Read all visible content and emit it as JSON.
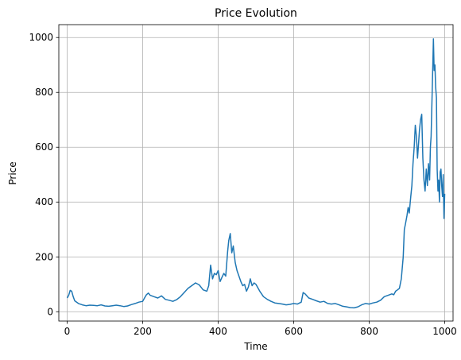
{
  "chart_data": {
    "type": "line",
    "title": "Price Evolution",
    "xlabel": "Time",
    "ylabel": "Price",
    "xlim": [
      -22,
      1022
    ],
    "ylim": [
      -34,
      1047
    ],
    "grid": true,
    "line_color": "#1f77b4",
    "grid_color": "#b0b0b0",
    "xticks": [
      0,
      200,
      400,
      600,
      800,
      1000
    ],
    "yticks": [
      0,
      200,
      400,
      600,
      800,
      1000
    ],
    "series": [
      {
        "name": "Price",
        "x": [
          0,
          4,
          8,
          12,
          16,
          20,
          30,
          40,
          50,
          60,
          70,
          80,
          90,
          100,
          110,
          120,
          130,
          140,
          150,
          160,
          170,
          180,
          190,
          200,
          205,
          210,
          215,
          220,
          230,
          240,
          250,
          260,
          270,
          280,
          290,
          300,
          310,
          320,
          330,
          340,
          350,
          360,
          370,
          375,
          380,
          385,
          390,
          395,
          400,
          405,
          410,
          415,
          420,
          425,
          428,
          432,
          436,
          440,
          445,
          450,
          455,
          460,
          465,
          470,
          475,
          480,
          485,
          490,
          495,
          500,
          510,
          520,
          530,
          540,
          550,
          560,
          570,
          580,
          590,
          600,
          610,
          620,
          625,
          630,
          640,
          650,
          660,
          670,
          680,
          690,
          700,
          710,
          720,
          730,
          740,
          750,
          760,
          770,
          780,
          790,
          800,
          810,
          820,
          830,
          840,
          850,
          860,
          865,
          870,
          875,
          880,
          885,
          890,
          893,
          896,
          900,
          903,
          906,
          910,
          913,
          916,
          919,
          922,
          925,
          928,
          930,
          933,
          936,
          939,
          942,
          945,
          948,
          951,
          954,
          957,
          960,
          962,
          964,
          966,
          968,
          970,
          972,
          974,
          976,
          978,
          980,
          982,
          984,
          986,
          988,
          990,
          992,
          994,
          996,
          998,
          1000
        ],
        "values": [
          50,
          60,
          78,
          75,
          55,
          40,
          30,
          25,
          22,
          24,
          23,
          22,
          25,
          21,
          20,
          22,
          24,
          22,
          19,
          21,
          26,
          30,
          35,
          38,
          50,
          62,
          68,
          60,
          55,
          50,
          58,
          45,
          42,
          38,
          44,
          55,
          70,
          85,
          95,
          105,
          98,
          80,
          75,
          95,
          170,
          120,
          140,
          135,
          150,
          110,
          125,
          140,
          130,
          220,
          260,
          285,
          215,
          240,
          180,
          150,
          130,
          110,
          95,
          100,
          75,
          90,
          120,
          95,
          105,
          100,
          75,
          55,
          45,
          38,
          32,
          30,
          28,
          25,
          27,
          30,
          28,
          35,
          70,
          65,
          50,
          45,
          40,
          35,
          38,
          30,
          28,
          30,
          25,
          20,
          18,
          15,
          14,
          18,
          25,
          30,
          28,
          32,
          35,
          42,
          55,
          60,
          65,
          62,
          75,
          80,
          85,
          120,
          200,
          300,
          320,
          350,
          380,
          360,
          420,
          460,
          540,
          600,
          680,
          640,
          560,
          600,
          660,
          700,
          720,
          560,
          480,
          440,
          520,
          460,
          540,
          480,
          600,
          640,
          760,
          870,
          995,
          880,
          900,
          820,
          780,
          520,
          440,
          480,
          400,
          510,
          520,
          460,
          420,
          500,
          340,
          430
        ]
      }
    ]
  }
}
